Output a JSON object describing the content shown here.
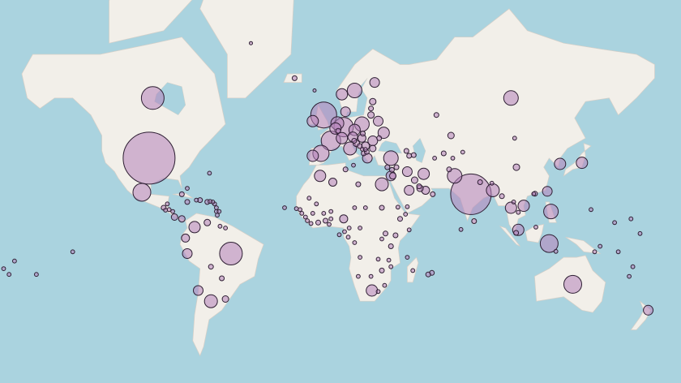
{
  "map": {
    "projection": "web-mercator",
    "colors": {
      "ocean": "#aad3df",
      "land": "#f2efe9",
      "bubble_fill": "#b482b9",
      "bubble_stroke": "#2e1f33"
    },
    "markers": [
      {
        "lon": -98,
        "lat": 39,
        "value": 1024
      },
      {
        "lon": -102,
        "lat": 23,
        "value": 121
      },
      {
        "lon": -96,
        "lat": 60,
        "value": 196
      },
      {
        "lon": -53,
        "lat": -10,
        "value": 196
      },
      {
        "lon": 101,
        "lat": 60,
        "value": 81
      },
      {
        "lon": 79,
        "lat": 22,
        "value": 625
      },
      {
        "lon": -2,
        "lat": 55,
        "value": 256
      },
      {
        "lon": 2,
        "lat": 46,
        "value": 144
      },
      {
        "lon": 9,
        "lat": 51,
        "value": 144
      },
      {
        "lon": -3.5,
        "lat": 41,
        "value": 100
      },
      {
        "lon": -8,
        "lat": 40,
        "value": 49
      },
      {
        "lon": 12.5,
        "lat": 43,
        "value": 64
      },
      {
        "lon": 15,
        "lat": 62,
        "value": 81
      },
      {
        "lon": 8,
        "lat": 61,
        "value": 49
      },
      {
        "lon": 26,
        "lat": 64,
        "value": 36
      },
      {
        "lon": 35,
        "lat": 39,
        "value": 81
      },
      {
        "lon": 19,
        "lat": 52,
        "value": 81
      },
      {
        "lon": 4.5,
        "lat": 50.5,
        "value": 49
      },
      {
        "lon": 5.5,
        "lat": 52.3,
        "value": 64
      },
      {
        "lon": 8,
        "lat": 47,
        "value": 49
      },
      {
        "lon": 14,
        "lat": 47.5,
        "value": 36
      },
      {
        "lon": 15,
        "lat": 50,
        "value": 49
      },
      {
        "lon": 10,
        "lat": 56,
        "value": 36
      },
      {
        "lon": -8,
        "lat": 53,
        "value": 49
      },
      {
        "lon": 19,
        "lat": 47,
        "value": 25
      },
      {
        "lon": 21,
        "lat": 44,
        "value": 25
      },
      {
        "lon": 22,
        "lat": 39,
        "value": 36
      },
      {
        "lon": 25,
        "lat": 46,
        "value": 36
      },
      {
        "lon": 25,
        "lat": 43,
        "value": 16
      },
      {
        "lon": 16,
        "lat": 45,
        "value": 16
      },
      {
        "lon": 14.8,
        "lat": 46,
        "value": 9
      },
      {
        "lon": 6,
        "lat": 49.7,
        "value": 9
      },
      {
        "lon": 24,
        "lat": 55,
        "value": 16
      },
      {
        "lon": 24,
        "lat": 57,
        "value": 9
      },
      {
        "lon": 25,
        "lat": 59,
        "value": 16
      },
      {
        "lon": 28.5,
        "lat": 47,
        "value": 9
      },
      {
        "lon": 28,
        "lat": 53,
        "value": 36
      },
      {
        "lon": 31,
        "lat": 49,
        "value": 49
      },
      {
        "lon": 33,
        "lat": 35,
        "value": 9
      },
      {
        "lon": 35.5,
        "lat": 33.8,
        "value": 9
      },
      {
        "lon": 35,
        "lat": 31,
        "value": 36
      },
      {
        "lon": 36,
        "lat": 31,
        "value": 16
      },
      {
        "lon": 45,
        "lat": 24,
        "value": 36
      },
      {
        "lon": 51,
        "lat": 25,
        "value": 16
      },
      {
        "lon": 48,
        "lat": 29,
        "value": 16
      },
      {
        "lon": 53,
        "lat": 32,
        "value": 49
      },
      {
        "lon": 44,
        "lat": 33,
        "value": 36
      },
      {
        "lon": 70,
        "lat": 31,
        "value": 81
      },
      {
        "lon": 91,
        "lat": 24,
        "value": 64
      },
      {
        "lon": 30,
        "lat": 27,
        "value": 64
      },
      {
        "lon": 24.5,
        "lat": -29,
        "value": 49
      },
      {
        "lon": 135,
        "lat": -26,
        "value": 121
      },
      {
        "lon": 122,
        "lat": -4.5,
        "value": 121
      },
      {
        "lon": 123,
        "lat": 13,
        "value": 81
      },
      {
        "lon": 128,
        "lat": 36.5,
        "value": 49
      },
      {
        "lon": 140,
        "lat": 37,
        "value": 49
      },
      {
        "lon": -73,
        "lat": 4.5,
        "value": 49
      },
      {
        "lon": -64,
        "lat": -34,
        "value": 64
      },
      {
        "lon": -71,
        "lat": -29,
        "value": 36
      },
      {
        "lon": -77,
        "lat": -10,
        "value": 36
      },
      {
        "lon": 108,
        "lat": 16,
        "value": 49
      },
      {
        "lon": 101,
        "lat": 15,
        "value": 49
      },
      {
        "lon": 105,
        "lat": 3,
        "value": 49
      },
      {
        "lon": -4,
        "lat": 31,
        "value": 49
      },
      {
        "lon": 3,
        "lat": 28,
        "value": 25
      },
      {
        "lon": 9,
        "lat": 9,
        "value": 25
      },
      {
        "lon": -78,
        "lat": -1.5,
        "value": 25
      },
      {
        "lon": -66,
        "lat": 7,
        "value": 16
      },
      {
        "lon": -84,
        "lat": 10,
        "value": 16
      },
      {
        "lon": -80,
        "lat": 9,
        "value": 16
      },
      {
        "lon": 121,
        "lat": 23.5,
        "value": 36
      },
      {
        "lon": 104,
        "lat": 35,
        "value": 16
      },
      {
        "lon": 176.5,
        "lat": -38,
        "value": 36
      },
      {
        "lon": 68,
        "lat": 48,
        "value": 16
      },
      {
        "lon": 54,
        "lat": 24,
        "value": 25
      },
      {
        "lon": -61,
        "lat": 15,
        "value": 6
      },
      {
        "lon": -62,
        "lat": 17,
        "value": 6
      },
      {
        "lon": -61,
        "lat": 13,
        "value": 6
      },
      {
        "lon": -63,
        "lat": 18,
        "value": 6
      },
      {
        "lon": -64.5,
        "lat": 18.3,
        "value": 6
      },
      {
        "lon": -66,
        "lat": 18,
        "value": 9
      },
      {
        "lon": -70,
        "lat": 19,
        "value": 9
      },
      {
        "lon": -72,
        "lat": 19,
        "value": 6
      },
      {
        "lon": -77,
        "lat": 18,
        "value": 9
      },
      {
        "lon": -88,
        "lat": 17,
        "value": 6
      },
      {
        "lon": -90,
        "lat": 15,
        "value": 9
      },
      {
        "lon": -87,
        "lat": 14,
        "value": 6
      },
      {
        "lon": -85,
        "lat": 13,
        "value": 6
      },
      {
        "lon": -89,
        "lat": 13.7,
        "value": 6
      },
      {
        "lon": -77,
        "lat": 25,
        "value": 6
      },
      {
        "lon": -64.8,
        "lat": 32.3,
        "value": 6
      },
      {
        "lon": -60.5,
        "lat": 11,
        "value": 6
      },
      {
        "lon": -59,
        "lat": 5,
        "value": 6
      },
      {
        "lon": -56,
        "lat": 4,
        "value": 6
      },
      {
        "lon": -64,
        "lat": -17,
        "value": 9
      },
      {
        "lon": -58,
        "lat": -23,
        "value": 9
      },
      {
        "lon": -56,
        "lat": -33,
        "value": 16
      },
      {
        "lon": -80,
        "lat": 22,
        "value": 9
      },
      {
        "lon": -59.5,
        "lat": 13,
        "value": 6
      },
      {
        "lon": -178,
        "lat": -18,
        "value": 6
      },
      {
        "lon": -175,
        "lat": -21,
        "value": 6
      },
      {
        "lon": -172,
        "lat": -14,
        "value": 6
      },
      {
        "lon": -160,
        "lat": -21,
        "value": 6
      },
      {
        "lon": -140,
        "lat": -9,
        "value": 6
      },
      {
        "lon": 166,
        "lat": -22,
        "value": 6
      },
      {
        "lon": 168,
        "lat": -17,
        "value": 6
      },
      {
        "lon": 160,
        "lat": -9,
        "value": 6
      },
      {
        "lon": 172,
        "lat": 1,
        "value": 6
      },
      {
        "lon": 145,
        "lat": 14,
        "value": 6
      },
      {
        "lon": 167,
        "lat": 9,
        "value": 6
      },
      {
        "lon": 158,
        "lat": 7,
        "value": 6
      },
      {
        "lon": 150,
        "lat": -6,
        "value": 6
      },
      {
        "lon": 147,
        "lat": -9,
        "value": 6
      },
      {
        "lon": -15,
        "lat": 14,
        "value": 6
      },
      {
        "lon": -17,
        "lat": 14.5,
        "value": 6
      },
      {
        "lon": -14,
        "lat": 12,
        "value": 6
      },
      {
        "lon": -12,
        "lat": 10,
        "value": 6
      },
      {
        "lon": -11,
        "lat": 8,
        "value": 6
      },
      {
        "lon": -9,
        "lat": 6.5,
        "value": 6
      },
      {
        "lon": -5,
        "lat": 7,
        "value": 9
      },
      {
        "lon": -1,
        "lat": 8,
        "value": 9
      },
      {
        "lon": 1,
        "lat": 6,
        "value": 6
      },
      {
        "lon": 2,
        "lat": 9,
        "value": 6
      },
      {
        "lon": 2,
        "lat": 13,
        "value": 6
      },
      {
        "lon": -2,
        "lat": 12,
        "value": 6
      },
      {
        "lon": -8,
        "lat": 12,
        "value": 6
      },
      {
        "lon": -6,
        "lat": 17,
        "value": 6
      },
      {
        "lon": -10,
        "lat": 20,
        "value": 6
      },
      {
        "lon": 12,
        "lat": 4,
        "value": 6
      },
      {
        "lon": 9.5,
        "lat": 2,
        "value": 6
      },
      {
        "lon": 11.5,
        "lat": -1,
        "value": 6
      },
      {
        "lon": 15,
        "lat": -4,
        "value": 6
      },
      {
        "lon": 18,
        "lat": 4,
        "value": 6
      },
      {
        "lon": 15,
        "lat": 15,
        "value": 6
      },
      {
        "lon": 21,
        "lat": 15,
        "value": 6
      },
      {
        "lon": 30,
        "lat": 15,
        "value": 9
      },
      {
        "lon": 32,
        "lat": 1,
        "value": 9
      },
      {
        "lon": 30,
        "lat": -2,
        "value": 6
      },
      {
        "lon": 37.5,
        "lat": 0,
        "value": 9
      },
      {
        "lon": 40,
        "lat": 9,
        "value": 9
      },
      {
        "lon": 43,
        "lat": 11.5,
        "value": 6
      },
      {
        "lon": 45,
        "lat": 3,
        "value": 6
      },
      {
        "lon": 35,
        "lat": -6,
        "value": 9
      },
      {
        "lon": 28,
        "lat": -13,
        "value": 6
      },
      {
        "lon": 33.8,
        "lat": -13.5,
        "value": 6
      },
      {
        "lon": 35,
        "lat": -17,
        "value": 6
      },
      {
        "lon": 30,
        "lat": -19,
        "value": 9
      },
      {
        "lon": 24,
        "lat": -22,
        "value": 6
      },
      {
        "lon": 17,
        "lat": -22,
        "value": 6
      },
      {
        "lon": 18,
        "lat": -12,
        "value": 6
      },
      {
        "lon": 31.5,
        "lat": -26.5,
        "value": 6
      },
      {
        "lon": 28,
        "lat": -29.5,
        "value": 6
      },
      {
        "lon": 57.5,
        "lat": -20.2,
        "value": 9
      },
      {
        "lon": 55.5,
        "lat": -21,
        "value": 9
      },
      {
        "lon": 47,
        "lat": -19,
        "value": 6
      },
      {
        "lon": 44,
        "lat": -12,
        "value": 6
      },
      {
        "lon": -23.5,
        "lat": 15,
        "value": 6
      },
      {
        "lon": 6.6,
        "lat": 0.3,
        "value": 6
      },
      {
        "lon": 38.8,
        "lat": 15.3,
        "value": 6
      },
      {
        "lon": 50.5,
        "lat": 26,
        "value": 9
      },
      {
        "lon": 58,
        "lat": 22,
        "value": 9
      },
      {
        "lon": 44,
        "lat": 15.5,
        "value": 6
      },
      {
        "lon": 45,
        "lat": 40,
        "value": 9
      },
      {
        "lon": 43.5,
        "lat": 42,
        "value": 9
      },
      {
        "lon": 47.5,
        "lat": 40.3,
        "value": 9
      },
      {
        "lon": 69,
        "lat": 39,
        "value": 6
      },
      {
        "lon": 74.5,
        "lat": 41.5,
        "value": 6
      },
      {
        "lon": 64,
        "lat": 41,
        "value": 9
      },
      {
        "lon": 59,
        "lat": 39,
        "value": 6
      },
      {
        "lon": 67,
        "lat": 34,
        "value": 9
      },
      {
        "lon": 84,
        "lat": 28,
        "value": 9
      },
      {
        "lon": 90.5,
        "lat": 27.5,
        "value": 6
      },
      {
        "lon": 80.7,
        "lat": 7.8,
        "value": 9
      },
      {
        "lon": 73.5,
        "lat": 3.2,
        "value": 6
      },
      {
        "lon": 105,
        "lat": 12.5,
        "value": 6
      },
      {
        "lon": 102.5,
        "lat": 18,
        "value": 6
      },
      {
        "lon": 96,
        "lat": 21,
        "value": 9
      },
      {
        "lon": 103,
        "lat": 47,
        "value": 6
      },
      {
        "lon": 114.2,
        "lat": 22.3,
        "value": 9
      },
      {
        "lon": 113.5,
        "lat": 22.2,
        "value": 6
      },
      {
        "lon": 114.7,
        "lat": 4.5,
        "value": 6
      },
      {
        "lon": 125.7,
        "lat": -8.8,
        "value": 6
      },
      {
        "lon": 103.8,
        "lat": 1.35,
        "value": 9
      },
      {
        "lon": -42,
        "lat": 72,
        "value": 4
      },
      {
        "lon": -18,
        "lat": 65,
        "value": 9
      },
      {
        "lon": -7,
        "lat": 62,
        "value": 4
      },
      {
        "lon": 10,
        "lat": 34,
        "value": 9
      },
      {
        "lon": 17,
        "lat": 27,
        "value": 9
      },
      {
        "lon": 14.4,
        "lat": 35.9,
        "value": 6
      },
      {
        "lon": 20,
        "lat": 41,
        "value": 9
      },
      {
        "lon": 21.7,
        "lat": 41.6,
        "value": 9
      },
      {
        "lon": 17.8,
        "lat": 44,
        "value": 9
      },
      {
        "lon": 19.3,
        "lat": 42.7,
        "value": 6
      },
      {
        "lon": 21,
        "lat": 42.6,
        "value": 6
      },
      {
        "lon": 19.5,
        "lat": 48.7,
        "value": 9
      },
      {
        "lon": 38,
        "lat": 35,
        "value": 9
      },
      {
        "lon": 60,
        "lat": 55,
        "value": 9
      }
    ]
  }
}
